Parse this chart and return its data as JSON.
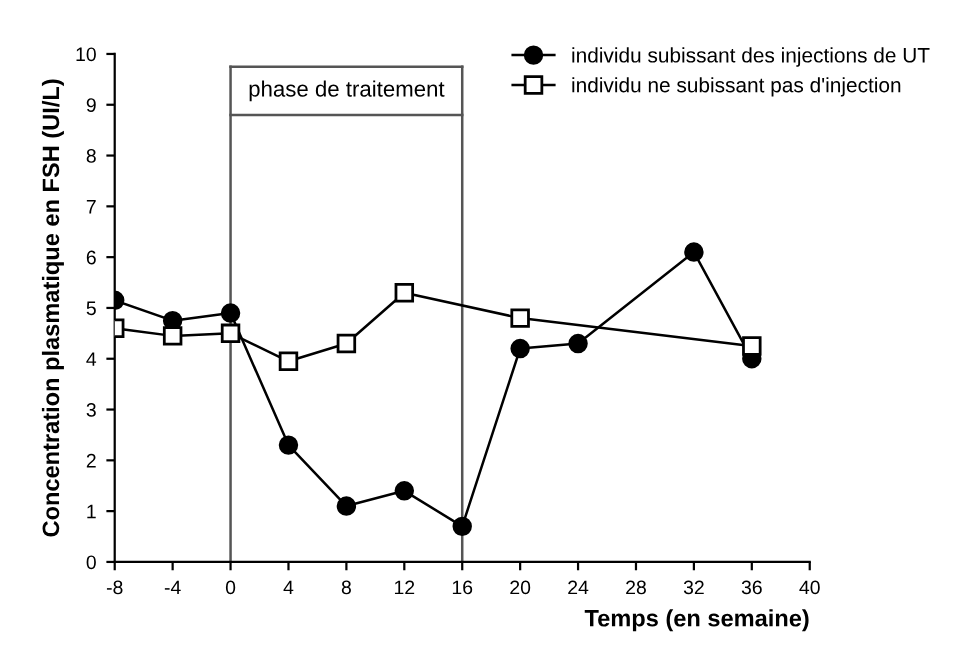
{
  "chart_data": {
    "type": "line",
    "xlabel": "Temps (en semaine)",
    "ylabel": "Concentration plasmatique en FSH (UI/L)",
    "series": [
      {
        "name": "individu subissant des injections de UT",
        "color": "#000000",
        "marker": "circle",
        "x": [
          -8,
          -4,
          0,
          4,
          8,
          12,
          16,
          20,
          24,
          32,
          36
        ],
        "values": [
          5.15,
          4.75,
          4.9,
          2.3,
          1.1,
          1.4,
          0.7,
          4.2,
          4.3,
          6.1,
          4.0
        ]
      },
      {
        "name": "individu ne subissant pas d'injection",
        "color": "#000000",
        "marker": "square",
        "x": [
          -8,
          -4,
          0,
          4,
          8,
          12,
          20,
          36
        ],
        "values": [
          4.6,
          4.45,
          4.5,
          3.95,
          4.3,
          5.3,
          4.8,
          4.25
        ]
      }
    ],
    "ref_lines": [
      {
        "axis": "x",
        "value": 0
      },
      {
        "axis": "x",
        "value": 16
      }
    ],
    "annotations": [
      "phase de traitement"
    ],
    "xlim": [
      -8,
      40
    ],
    "xticks": [
      -8,
      -4,
      0,
      4,
      8,
      12,
      16,
      20,
      24,
      28,
      32,
      36,
      40
    ],
    "ylim": [
      0,
      10
    ],
    "yticks": [
      0,
      1,
      2,
      3,
      4,
      5,
      6,
      7,
      8,
      9,
      10
    ],
    "grid": false,
    "legend": "top right",
    "line_style": "solid"
  }
}
